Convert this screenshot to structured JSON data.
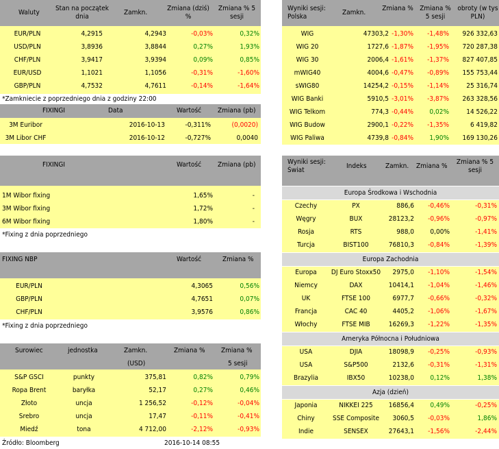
{
  "waluty": {
    "headers": [
      "Waluty",
      "Stan na początek dnia",
      "Zamkn.",
      "Zmiana (dziś) %",
      "Zmiana % 5 sesji"
    ],
    "rows": [
      [
        "EUR/PLN",
        "4,2915",
        "4,2943",
        "-0,03%",
        "0,32%"
      ],
      [
        "USD/PLN",
        "3,8936",
        "3,8844",
        "0,27%",
        "1,93%"
      ],
      [
        "CHF/PLN",
        "3,9417",
        "3,9394",
        "0,09%",
        "0,85%"
      ],
      [
        "EUR/USD",
        "1,1021",
        "1,1056",
        "-0,31%",
        "-1,60%"
      ],
      [
        "GBP/PLN",
        "4,7532",
        "4,7611",
        "-0,14%",
        "-1,64%"
      ]
    ],
    "note": "*Zamkniecie z poprzedniego dnia z godziny 22:00"
  },
  "fixing1": {
    "headers": [
      "FIXINGI",
      "Data",
      "Wartość",
      "Zmiana (pb)"
    ],
    "rows": [
      [
        "3M Euribor",
        "2016-10-13",
        "-0,311%",
        "(0,0020)"
      ],
      [
        "3M Libor CHF",
        "2016-10-12",
        "-0,727%",
        "0,0040"
      ]
    ]
  },
  "wibor": {
    "headers": [
      "FIXINGI",
      "Wartość",
      "Zmiana (pb)"
    ],
    "rows": [
      [
        "1M Wibor fixing",
        "1,65%",
        "-"
      ],
      [
        "3M Wibor fixing",
        "1,72%",
        "-"
      ],
      [
        "6M Wibor fixing",
        "1,80%",
        "-"
      ]
    ],
    "note": "*Fixing z dnia poprzedniego"
  },
  "nbp": {
    "headers": [
      "FIXING NBP",
      "Wartość",
      "Zmiana %"
    ],
    "rows": [
      [
        "EUR/PLN",
        "4,3065",
        "0,56%"
      ],
      [
        "GBP/PLN",
        "4,7651",
        "0,07%"
      ],
      [
        "CHF/PLN",
        "3,9576",
        "0,86%"
      ]
    ],
    "note": "*Fixing z dnia poprzedniego"
  },
  "surowce": {
    "headers": [
      "Surowiec",
      "jednostka",
      "Zamkn.",
      "Zmiana %",
      "Zmiana %"
    ],
    "subheaders": [
      "(USD)",
      "5 sesji"
    ],
    "rows": [
      [
        "S&P GSCI",
        "punkty",
        "375,81",
        "0,82%",
        "0,79%"
      ],
      [
        "Ropa Brent",
        "baryłka",
        "52,17",
        "0,27%",
        "0,46%"
      ],
      [
        "Złoto",
        "uncja",
        "1 256,52",
        "-0,12%",
        "-0,04%"
      ],
      [
        "Srebro",
        "uncja",
        "17,47",
        "-0,11%",
        "-0,41%"
      ],
      [
        "Miedź",
        "tona",
        "4 712,00",
        "-2,12%",
        "-0,93%"
      ]
    ]
  },
  "footer": {
    "source": "Źródło: Bloomberg",
    "datetime": "2016-10-14 08:55"
  },
  "polska": {
    "headers": [
      "Wyniki sesji: Polska",
      "Zamkn.",
      "Zmiana %",
      "Zmiana % 5 sesji",
      "obroty (w tys PLN)"
    ],
    "rows": [
      [
        "WIG",
        "47303,2",
        "-1,30%",
        "-1,48%",
        "926 332,63"
      ],
      [
        "WIG 20",
        "1727,6",
        "-1,87%",
        "-1,95%",
        "720 287,38"
      ],
      [
        "WIG 30",
        "2006,4",
        "-1,61%",
        "-1,37%",
        "827 407,85"
      ],
      [
        "mWIG40",
        "4004,6",
        "-0,47%",
        "-0,89%",
        "155 753,44"
      ],
      [
        "sWIG80",
        "14254,2",
        "-0,15%",
        "-1,14%",
        "25 316,74"
      ],
      [
        "WIG Banki",
        "5910,5",
        "-3,01%",
        "-3,87%",
        "263 328,56"
      ],
      [
        "WIG Telkom",
        "774,3",
        "-0,44%",
        "0,02%",
        "14 526,22"
      ],
      [
        "WIG Budow",
        "2900,1",
        "-0,22%",
        "-1,35%",
        "6 419,82"
      ],
      [
        "WIG Paliwa",
        "4739,8",
        "-0,84%",
        "1,90%",
        "169 130,26"
      ]
    ]
  },
  "swiat": {
    "headers": [
      "Wyniki sesji: Świat",
      "Indeks",
      "Zamkn.",
      "Zmiana %",
      "Zmiana % 5 sesji"
    ],
    "sections": [
      {
        "title": "Europa Środkowa i Wschodnia",
        "rows": [
          [
            "Czechy",
            "PX",
            "886,6",
            "-0,46%",
            "-0,31%"
          ],
          [
            "Węgry",
            "BUX",
            "28123,2",
            "-0,96%",
            "-0,97%"
          ],
          [
            "Rosja",
            "RTS",
            "988,0",
            "0,00%",
            "-1,41%"
          ],
          [
            "Turcja",
            "BIST100",
            "76810,3",
            "-0,84%",
            "-1,39%"
          ]
        ]
      },
      {
        "title": "Europa Zachodnia",
        "rows": [
          [
            "Europa",
            "DJ Euro Stoxx50",
            "2975,0",
            "-1,10%",
            "-1,54%"
          ],
          [
            "Niemcy",
            "DAX",
            "10414,1",
            "-1,04%",
            "-1,46%"
          ],
          [
            "UK",
            "FTSE 100",
            "6977,7",
            "-0,66%",
            "-0,32%"
          ],
          [
            "Francja",
            "CAC 40",
            "4405,2",
            "-1,06%",
            "-1,67%"
          ],
          [
            "Włochy",
            "FTSE MIB",
            "16269,3",
            "-1,22%",
            "-1,35%"
          ]
        ]
      },
      {
        "title": "Ameryka Północna i Południowa",
        "rows": [
          [
            "USA",
            "DJIA",
            "18098,9",
            "-0,25%",
            "-0,93%"
          ],
          [
            "USA",
            "S&P500",
            "2132,6",
            "-0,31%",
            "-1,31%"
          ],
          [
            "Brazylia",
            "IBX50",
            "10238,0",
            "0,12%",
            "1,38%"
          ]
        ]
      },
      {
        "title": "Azja (dzień)",
        "rows": [
          [
            "Japonia",
            "NIKKEI 225",
            "16856,4",
            "0,49%",
            "-0,25%"
          ],
          [
            "Chiny",
            "SSE Composite",
            "3060,5",
            "-0,03%",
            "1,86%"
          ],
          [
            "Indie",
            "SENSEX",
            "27643,1",
            "-1,56%",
            "-2,44%"
          ]
        ]
      }
    ]
  },
  "colors": {
    "header": "#a6a6a6",
    "row": "#ffff99",
    "negative": "#ff0000",
    "positive": "#008000",
    "section": "#d9d9d9"
  }
}
